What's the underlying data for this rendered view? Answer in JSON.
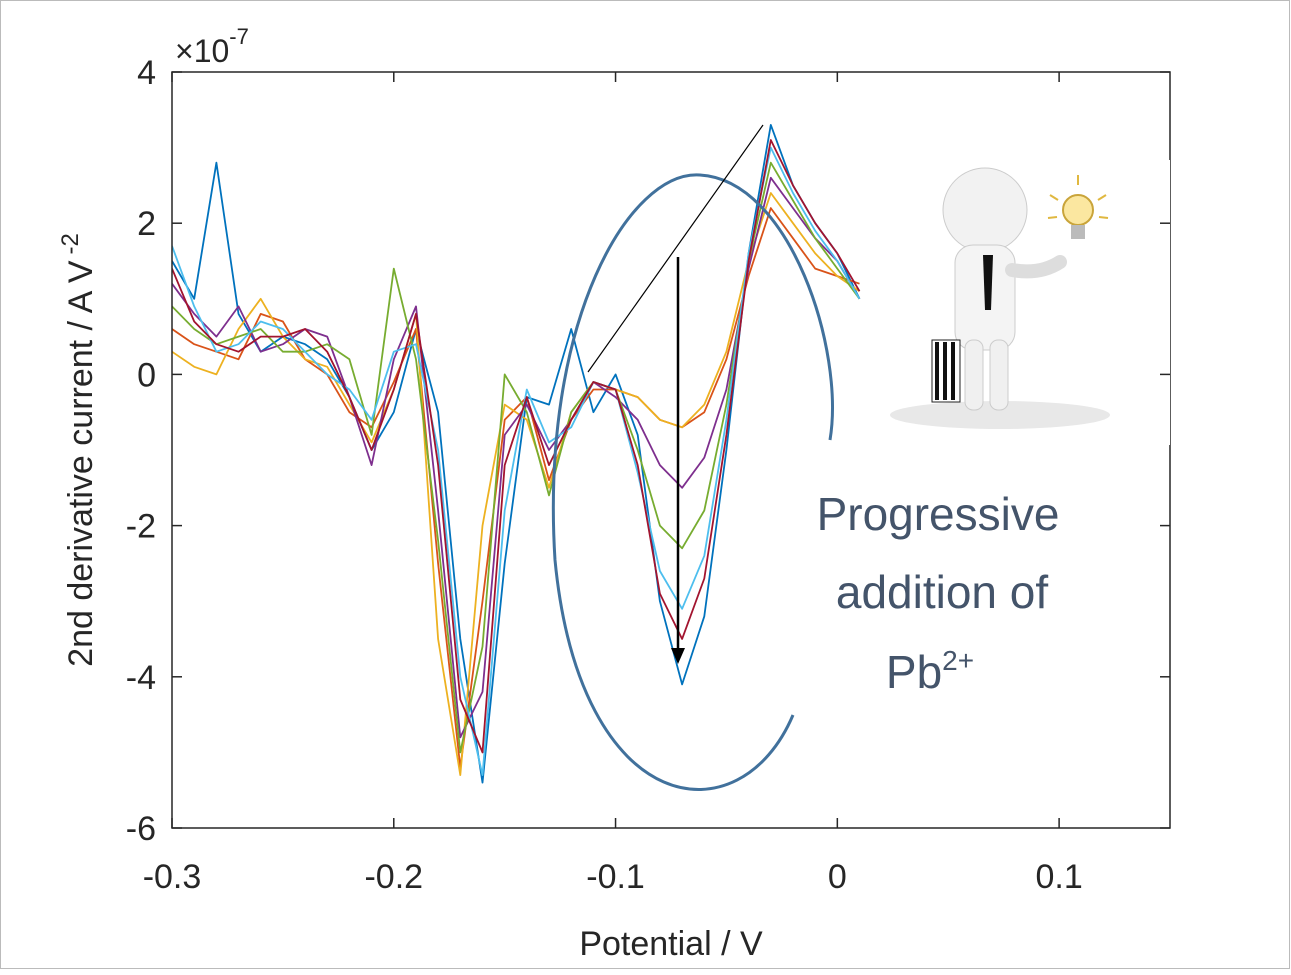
{
  "chart_data": {
    "type": "line",
    "x_label": "Potential / V",
    "y_label": "2nd derivative current / A V",
    "y_label_exponent": "-2",
    "y_multiplier": "×10",
    "y_multiplier_exponent": "-7",
    "annotations": [
      "Progressive",
      "addition of",
      "Pb",
      "2+"
    ],
    "xlim": [
      -0.3,
      0.15
    ],
    "xticks": [
      -0.3,
      -0.2,
      -0.1,
      0,
      0.1
    ],
    "ylim": [
      -6,
      4
    ],
    "yticks": [
      -6,
      -4,
      -2,
      0,
      2,
      4
    ],
    "x": [
      -0.3,
      -0.29,
      -0.28,
      -0.27,
      -0.26,
      -0.25,
      -0.24,
      -0.23,
      -0.22,
      -0.21,
      -0.2,
      -0.19,
      -0.18,
      -0.17,
      -0.16,
      -0.15,
      -0.14,
      -0.13,
      -0.12,
      -0.11,
      -0.1,
      -0.09,
      -0.08,
      -0.07,
      -0.06,
      -0.05,
      -0.04,
      -0.03,
      -0.02,
      -0.01,
      0,
      0.01
    ],
    "series": [
      {
        "color": "#0072bd",
        "values": [
          1.5,
          1.0,
          2.8,
          0.8,
          0.3,
          0.5,
          0.4,
          0.2,
          -0.3,
          -1.0,
          -0.5,
          0.6,
          -0.5,
          -3.5,
          -5.4,
          -2.5,
          -0.3,
          -0.4,
          0.6,
          -0.5,
          0.0,
          -0.8,
          -3.0,
          -4.1,
          -3.2,
          -1.0,
          1.6,
          3.3,
          2.5,
          2.0,
          1.6,
          1.0
        ]
      },
      {
        "color": "#d95319",
        "values": [
          0.6,
          0.4,
          0.3,
          0.2,
          0.8,
          0.7,
          0.2,
          0.0,
          -0.5,
          -0.7,
          -0.1,
          0.6,
          -2.5,
          -5.2,
          -3.0,
          -0.6,
          -0.3,
          -1.4,
          -0.6,
          -0.2,
          -0.2,
          -0.3,
          -0.6,
          -0.7,
          -0.5,
          0.2,
          1.3,
          2.2,
          1.8,
          1.4,
          1.3,
          1.2
        ]
      },
      {
        "color": "#edb120",
        "values": [
          0.3,
          0.1,
          0.0,
          0.6,
          1.0,
          0.5,
          0.2,
          0.1,
          -0.4,
          -0.9,
          -0.2,
          0.8,
          -3.5,
          -5.3,
          -2.0,
          -0.4,
          -0.6,
          -1.5,
          -0.5,
          -0.1,
          -0.2,
          -0.3,
          -0.6,
          -0.7,
          -0.4,
          0.3,
          1.5,
          2.4,
          2.0,
          1.6,
          1.3,
          1.1
        ]
      },
      {
        "color": "#7e2f8e",
        "values": [
          1.2,
          0.8,
          0.5,
          0.9,
          0.3,
          0.4,
          0.6,
          0.5,
          -0.3,
          -1.2,
          0.2,
          0.9,
          -1.8,
          -4.8,
          -4.2,
          -0.8,
          -0.4,
          -1.0,
          -0.6,
          -0.1,
          -0.3,
          -0.6,
          -1.2,
          -1.5,
          -1.1,
          -0.2,
          1.4,
          2.6,
          2.2,
          1.8,
          1.5,
          1.0
        ]
      },
      {
        "color": "#77ac30",
        "values": [
          0.9,
          0.6,
          0.4,
          0.5,
          0.6,
          0.3,
          0.3,
          0.4,
          0.2,
          -0.8,
          1.4,
          0.2,
          -2.2,
          -5.0,
          -3.6,
          0.0,
          -0.5,
          -1.6,
          -0.5,
          -0.1,
          -0.2,
          -1.0,
          -2.0,
          -2.3,
          -1.8,
          -0.4,
          1.5,
          2.8,
          2.3,
          1.8,
          1.4,
          1.0
        ]
      },
      {
        "color": "#4dbeee",
        "values": [
          1.7,
          0.9,
          0.3,
          0.4,
          0.7,
          0.6,
          0.3,
          0.0,
          -0.2,
          -0.6,
          0.3,
          0.4,
          -1.0,
          -4.0,
          -5.3,
          -1.8,
          -0.2,
          -0.9,
          -0.7,
          -0.1,
          -0.2,
          -1.3,
          -2.6,
          -3.1,
          -2.4,
          -0.6,
          1.6,
          3.0,
          2.4,
          1.9,
          1.5,
          1.0
        ]
      },
      {
        "color": "#a2142f",
        "values": [
          1.4,
          0.7,
          0.4,
          0.3,
          0.5,
          0.5,
          0.6,
          0.3,
          -0.3,
          -1.0,
          -0.2,
          0.8,
          -1.2,
          -4.3,
          -5.0,
          -1.2,
          -0.3,
          -1.2,
          -0.6,
          -0.1,
          -0.2,
          -1.2,
          -2.9,
          -3.5,
          -2.7,
          -0.8,
          1.5,
          3.1,
          2.5,
          2.0,
          1.6,
          1.1
        ]
      }
    ]
  }
}
